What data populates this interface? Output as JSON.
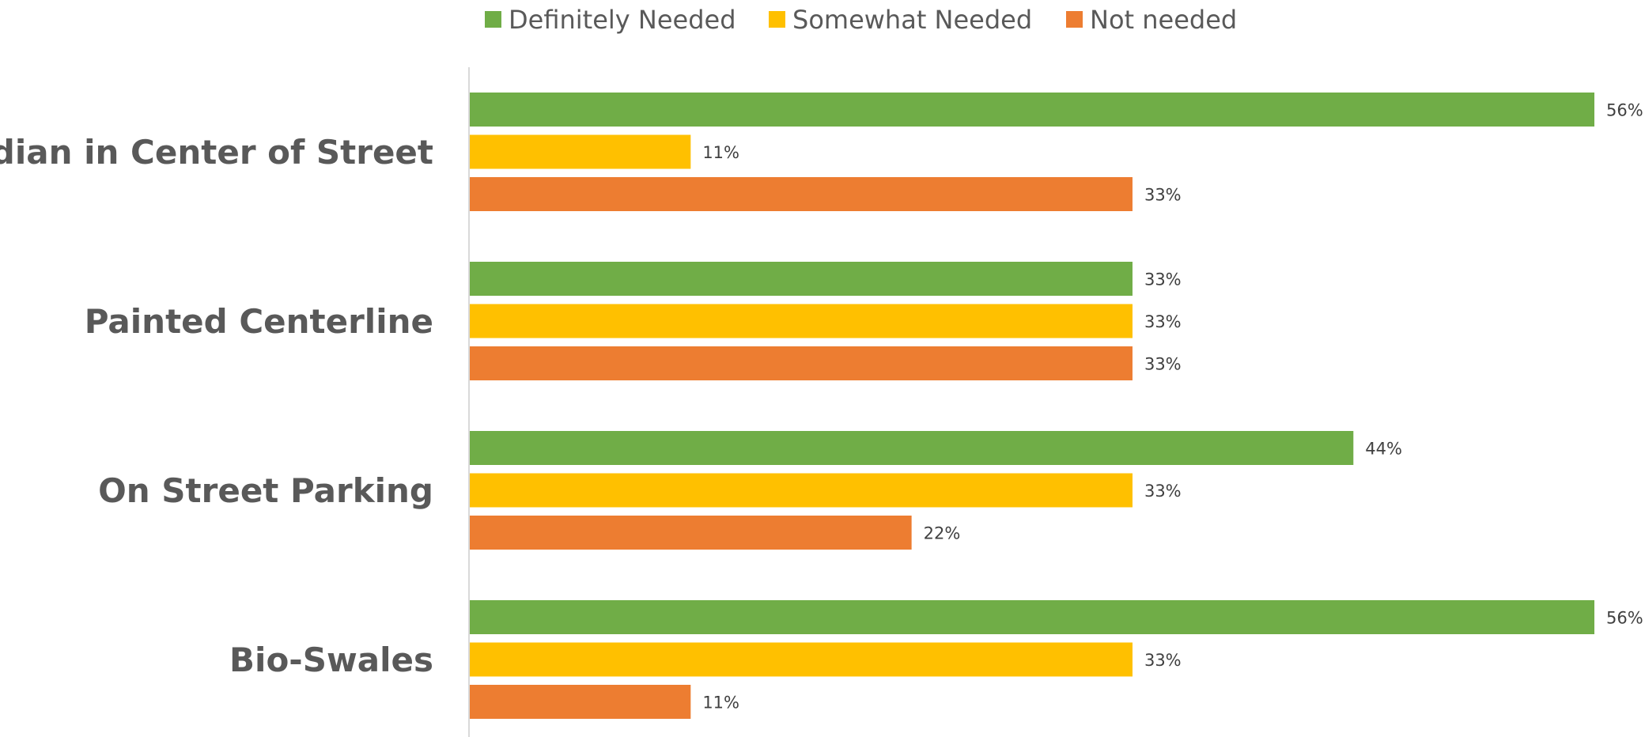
{
  "chart_data": {
    "type": "bar",
    "orientation": "horizontal",
    "categories": [
      "Median in Center of Street",
      "Painted Centerline",
      "On Street Parking",
      "Bio-Swales"
    ],
    "series": [
      {
        "name": "Definitely Needed",
        "color": "#70AD47",
        "values": [
          56,
          33,
          44,
          56
        ]
      },
      {
        "name": "Somewhat Needed",
        "color": "#FFC000",
        "values": [
          11,
          33,
          33,
          33
        ]
      },
      {
        "name": "Not needed",
        "color": "#ED7D31",
        "values": [
          33,
          33,
          22,
          11
        ]
      }
    ],
    "value_suffix": "%",
    "xlim": [
      0,
      56
    ],
    "grid": false,
    "legend_position": "top",
    "data_labels": true
  }
}
